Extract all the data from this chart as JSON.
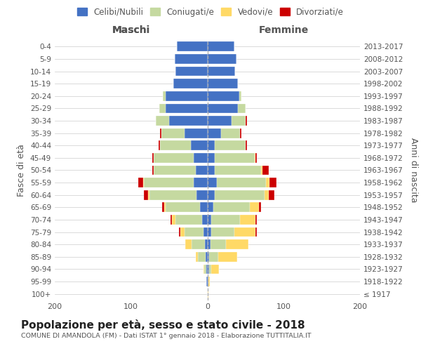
{
  "age_groups": [
    "100+",
    "95-99",
    "90-94",
    "85-89",
    "80-84",
    "75-79",
    "70-74",
    "65-69",
    "60-64",
    "55-59",
    "50-54",
    "45-49",
    "40-44",
    "35-39",
    "30-34",
    "25-29",
    "20-24",
    "15-19",
    "10-14",
    "5-9",
    "0-4"
  ],
  "birth_years": [
    "≤ 1917",
    "1918-1922",
    "1923-1927",
    "1928-1932",
    "1933-1937",
    "1938-1942",
    "1943-1947",
    "1948-1952",
    "1953-1957",
    "1958-1962",
    "1963-1967",
    "1968-1972",
    "1973-1977",
    "1978-1982",
    "1983-1987",
    "1988-1992",
    "1993-1997",
    "1998-2002",
    "2003-2007",
    "2008-2012",
    "2013-2017"
  ],
  "colors": {
    "celibi": "#4472c4",
    "coniugati": "#c5d9a0",
    "vedovi": "#ffd966",
    "divorziati": "#cc0000"
  },
  "maschi": {
    "celibi": [
      0,
      1,
      1,
      2,
      3,
      5,
      7,
      10,
      14,
      18,
      15,
      18,
      22,
      30,
      50,
      55,
      55,
      45,
      42,
      43,
      40
    ],
    "coniugati": [
      0,
      0,
      3,
      10,
      18,
      25,
      35,
      45,
      62,
      65,
      55,
      52,
      40,
      30,
      18,
      8,
      3,
      0,
      0,
      0,
      0
    ],
    "vedovi": [
      0,
      0,
      1,
      3,
      8,
      5,
      4,
      2,
      2,
      1,
      0,
      0,
      0,
      0,
      0,
      0,
      0,
      0,
      0,
      0,
      0
    ],
    "divorziati": [
      0,
      0,
      0,
      0,
      0,
      2,
      2,
      2,
      5,
      7,
      2,
      2,
      2,
      2,
      0,
      0,
      0,
      0,
      0,
      0,
      0
    ]
  },
  "femmine": {
    "celibi": [
      0,
      1,
      2,
      2,
      4,
      5,
      5,
      8,
      10,
      12,
      10,
      10,
      10,
      18,
      32,
      40,
      42,
      40,
      36,
      38,
      35
    ],
    "coniugati": [
      0,
      0,
      3,
      12,
      20,
      30,
      38,
      48,
      65,
      65,
      60,
      52,
      40,
      25,
      18,
      10,
      3,
      0,
      0,
      0,
      0
    ],
    "vedovi": [
      1,
      2,
      10,
      25,
      30,
      28,
      20,
      12,
      5,
      4,
      2,
      1,
      0,
      0,
      0,
      0,
      0,
      0,
      0,
      0,
      0
    ],
    "divorziati": [
      0,
      0,
      0,
      0,
      0,
      2,
      2,
      2,
      8,
      10,
      8,
      2,
      2,
      2,
      2,
      0,
      0,
      0,
      0,
      0,
      0
    ]
  },
  "xlim": 200,
  "title": "Popolazione per età, sesso e stato civile - 2018",
  "subtitle": "COMUNE DI AMANDOLA (FM) - Dati ISTAT 1° gennaio 2018 - Elaborazione TUTTITALIA.IT",
  "ylabel_left": "Fasce di età",
  "ylabel_right": "Anni di nascita",
  "xlabel_maschi": "Maschi",
  "xlabel_femmine": "Femmine",
  "legend_labels": [
    "Celibi/Nubili",
    "Coniugati/e",
    "Vedovi/e",
    "Divorziati/e"
  ],
  "bg_color": "#ffffff",
  "grid_color": "#cccccc",
  "text_color": "#555555",
  "title_color": "#222222"
}
